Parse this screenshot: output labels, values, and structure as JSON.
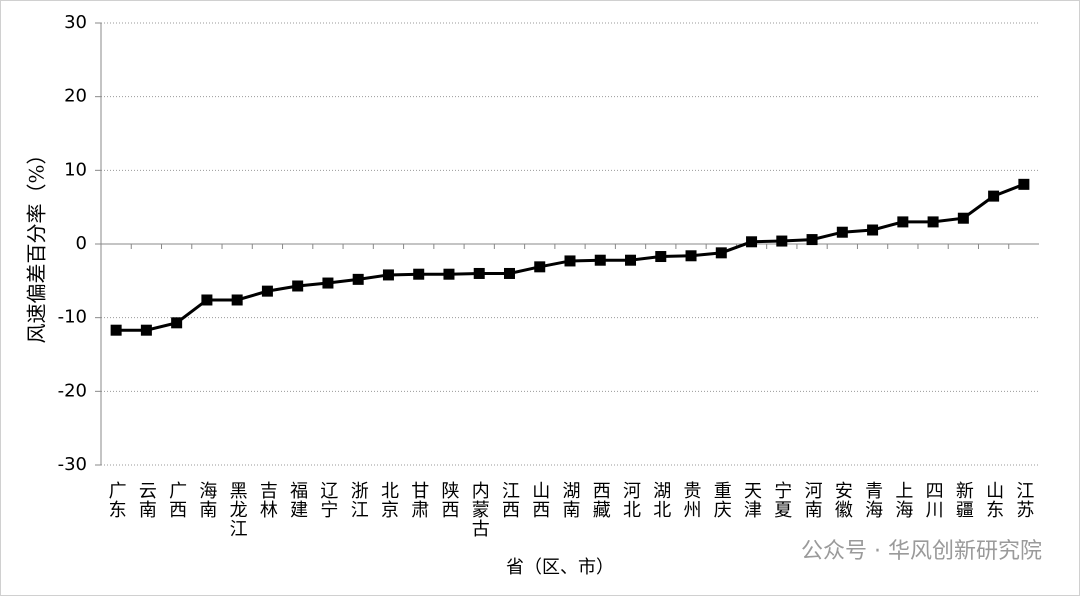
{
  "chart_data": {
    "type": "line",
    "x_label": "省（区、市）",
    "y_label": "风速偏差百分率（%）",
    "watermark": "公众号 · 华风创新研究院",
    "categories": [
      "广东",
      "云南",
      "广西",
      "海南",
      "黑龙江",
      "吉林",
      "福建",
      "辽宁",
      "浙江",
      "北京",
      "甘肃",
      "陕西",
      "内蒙古",
      "江西",
      "山西",
      "湖南",
      "西藏",
      "河北",
      "湖北",
      "贵州",
      "重庆",
      "天津",
      "宁夏",
      "河南",
      "安徽",
      "青海",
      "上海",
      "四川",
      "新疆",
      "山东",
      "江苏"
    ],
    "series": [
      {
        "color": "#000000",
        "values": [
          -11.7,
          -11.7,
          -10.7,
          -7.6,
          -7.6,
          -6.4,
          -5.7,
          -5.3,
          -4.8,
          -4.2,
          -4.1,
          -4.1,
          -4.0,
          -4.0,
          -3.1,
          -2.3,
          -2.2,
          -2.2,
          -1.7,
          -1.6,
          -1.2,
          0.3,
          0.4,
          0.6,
          1.6,
          1.9,
          3.0,
          3.0,
          3.5,
          6.5,
          8.1
        ]
      }
    ],
    "ylim": [
      -30,
      30
    ],
    "yticks": [
      -30,
      -20,
      -10,
      0,
      10,
      20,
      30
    ],
    "grid": true
  }
}
